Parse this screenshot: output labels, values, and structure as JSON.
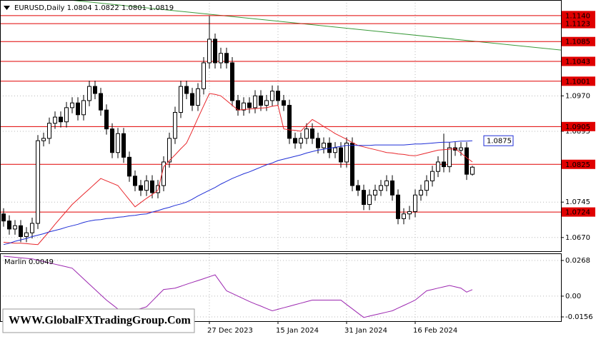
{
  "chart_data": {
    "type": "candlestick",
    "title": "EURUSD,Daily  1.0804 1.0822 1.0801 1.0819",
    "categories": [
      null,
      null,
      null,
      null,
      null,
      null,
      null,
      null,
      null,
      null,
      null,
      null,
      null,
      null,
      null,
      null,
      null,
      null,
      null,
      null,
      null,
      null,
      null,
      null,
      null,
      null,
      null,
      null,
      null,
      null,
      null,
      null,
      null,
      null,
      null,
      null,
      "27 Dec 2023",
      null,
      null,
      null,
      null,
      null,
      null,
      null,
      null,
      null,
      null,
      null,
      "15 Jan 2024",
      null,
      null,
      null,
      null,
      null,
      null,
      null,
      null,
      null,
      null,
      null,
      "31 Jan 2024",
      null,
      null,
      null,
      null,
      null,
      null,
      null,
      null,
      null,
      null,
      null,
      "16 Feb 2024",
      null,
      null,
      null,
      null,
      null,
      null,
      null,
      null,
      null,
      null
    ],
    "open": [
      1.072,
      1.0705,
      1.0688,
      1.0695,
      1.0672,
      1.068,
      1.07,
      1.0875,
      1.088,
      1.0912,
      1.0925,
      1.0915,
      1.0945,
      1.0955,
      1.093,
      1.096,
      1.099,
      1.0975,
      1.094,
      1.09,
      1.085,
      1.089,
      1.084,
      1.08,
      1.078,
      1.077,
      1.079,
      1.0765,
      1.078,
      1.083,
      1.088,
      1.0935,
      1.099,
      1.0975,
      1.095,
      1.0985,
      1.104,
      1.109,
      1.104,
      1.106,
      1.104,
      1.096,
      1.094,
      1.0955,
      1.0945,
      1.097,
      1.095,
      1.096,
      1.098,
      1.096,
      1.095,
      1.088,
      1.087,
      1.088,
      1.09,
      1.088,
      1.086,
      1.087,
      1.085,
      1.086,
      1.083,
      1.087,
      1.078,
      1.077,
      1.074,
      1.076,
      1.077,
      1.078,
      1.079,
      1.076,
      1.071,
      1.072,
      1.0725,
      1.076,
      1.077,
      1.079,
      1.081,
      1.083,
      1.082,
      1.086,
      1.0855,
      1.086,
      1.0804
    ],
    "high": [
      1.0732,
      1.0717,
      1.0707,
      1.0707,
      1.0692,
      1.0712,
      1.0887,
      1.0892,
      1.0924,
      1.0937,
      1.0937,
      1.0957,
      1.0967,
      1.0967,
      1.0972,
      1.1002,
      1.1002,
      1.0987,
      1.0952,
      1.0912,
      1.0902,
      1.0902,
      1.0852,
      1.0812,
      1.0792,
      1.0802,
      1.0802,
      1.0792,
      1.0842,
      1.0892,
      1.0947,
      1.1002,
      1.1002,
      1.0987,
      1.0997,
      1.1052,
      1.1139,
      1.1102,
      1.1072,
      1.1072,
      1.1052,
      1.0972,
      1.0967,
      1.0967,
      1.0982,
      1.0982,
      1.0972,
      1.0992,
      1.0992,
      1.0972,
      1.0962,
      1.0892,
      1.0892,
      1.0912,
      1.0912,
      1.0892,
      1.0882,
      1.0882,
      1.0872,
      1.0872,
      1.0882,
      1.0882,
      1.0792,
      1.0782,
      1.0772,
      1.0782,
      1.0792,
      1.0802,
      1.0802,
      1.0772,
      1.0732,
      1.0737,
      1.0772,
      1.0782,
      1.0802,
      1.0822,
      1.0842,
      1.089,
      1.0872,
      1.0872,
      1.0872,
      1.0872,
      1.0822
    ],
    "low": [
      1.0693,
      1.0676,
      1.0676,
      1.066,
      1.066,
      1.0668,
      1.0688,
      1.0863,
      1.0868,
      1.09,
      1.0903,
      1.0903,
      1.0933,
      1.0918,
      1.0918,
      1.0948,
      1.0963,
      1.0928,
      1.0888,
      1.0838,
      1.0838,
      1.0828,
      1.0788,
      1.0768,
      1.0758,
      1.0758,
      1.0753,
      1.0753,
      1.0768,
      1.0818,
      1.0868,
      1.0923,
      1.0963,
      1.0938,
      1.0938,
      1.0973,
      1.1028,
      1.1028,
      1.1028,
      1.1028,
      1.0948,
      1.0928,
      1.0928,
      1.0933,
      1.0933,
      1.0938,
      1.0938,
      1.0948,
      1.0948,
      1.0938,
      1.0868,
      1.0858,
      1.0858,
      1.0868,
      1.0868,
      1.0848,
      1.0848,
      1.0838,
      1.0838,
      1.0818,
      1.0818,
      1.0768,
      1.0758,
      1.0728,
      1.0728,
      1.0748,
      1.0758,
      1.0768,
      1.0748,
      1.0698,
      1.0698,
      1.0708,
      1.0713,
      1.0748,
      1.0758,
      1.0778,
      1.0798,
      1.0808,
      1.0808,
      1.0843,
      1.0843,
      1.0792,
      1.0801
    ],
    "close": [
      1.0705,
      1.0688,
      1.0695,
      1.0672,
      1.068,
      1.07,
      1.0875,
      1.088,
      1.0912,
      1.0925,
      1.0915,
      1.0945,
      1.0955,
      1.093,
      1.096,
      1.099,
      1.0975,
      1.094,
      1.09,
      1.085,
      1.089,
      1.084,
      1.08,
      1.078,
      1.077,
      1.079,
      1.0765,
      1.078,
      1.083,
      1.088,
      1.0935,
      1.099,
      1.0975,
      1.095,
      1.0985,
      1.104,
      1.109,
      1.104,
      1.106,
      1.104,
      1.096,
      1.094,
      1.0955,
      1.0945,
      1.097,
      1.095,
      1.096,
      1.098,
      1.096,
      1.095,
      1.088,
      1.087,
      1.088,
      1.09,
      1.088,
      1.086,
      1.087,
      1.085,
      1.086,
      1.083,
      1.087,
      1.078,
      1.077,
      1.074,
      1.076,
      1.077,
      1.078,
      1.079,
      1.076,
      1.071,
      1.072,
      1.0725,
      1.076,
      1.077,
      1.079,
      1.081,
      1.083,
      1.082,
      1.086,
      1.0855,
      1.086,
      1.0804,
      1.0819
    ],
    "up_color": "#ffffff",
    "down_color": "#000000",
    "overlays": [
      {
        "color": "#e8262b",
        "values": [
          1.066,
          1.0659,
          1.0658,
          1.0658,
          1.0657,
          1.0656,
          1.0655,
          1.0669,
          1.0683,
          1.0698,
          1.0712,
          1.0726,
          1.074,
          1.0751,
          1.0762,
          1.0773,
          1.0784,
          1.0795,
          1.079,
          1.0785,
          1.078,
          1.0765,
          1.075,
          1.0735,
          1.0744,
          1.0753,
          1.0761,
          1.077,
          1.082,
          1.0833,
          1.0845,
          1.0858,
          1.087,
          1.0896,
          1.0923,
          1.0949,
          1.0975,
          1.0973,
          1.097,
          1.096,
          1.095,
          1.094,
          1.0941,
          1.0942,
          1.0943,
          1.0944,
          1.0945,
          1.0948,
          1.095,
          1.09,
          1.0898,
          1.0897,
          1.0895,
          1.0908,
          1.092,
          1.0913,
          1.0905,
          1.0898,
          1.089,
          1.0884,
          1.0878,
          1.0871,
          1.0865,
          1.0862,
          1.0859,
          1.0856,
          1.0853,
          1.085,
          1.0849,
          1.0847,
          1.0846,
          1.0844,
          1.0843,
          1.0846,
          1.0849,
          1.0852,
          1.0855,
          1.0856,
          1.0857,
          1.0858,
          1.0849,
          1.0839,
          1.083
        ]
      },
      {
        "color": "#1f2ed6",
        "values": [
          1.0655,
          1.0658,
          1.0662,
          1.0665,
          1.0668,
          1.0672,
          1.0675,
          1.0678,
          1.0682,
          1.0685,
          1.0688,
          1.0692,
          1.0695,
          1.0698,
          1.0702,
          1.0705,
          1.0707,
          1.0708,
          1.071,
          1.0711,
          1.0713,
          1.0714,
          1.0716,
          1.0717,
          1.0719,
          1.072,
          1.0724,
          1.0727,
          1.0731,
          1.0734,
          1.0738,
          1.0741,
          1.0745,
          1.0751,
          1.0758,
          1.0764,
          1.077,
          1.0776,
          1.0783,
          1.0789,
          1.0795,
          1.08,
          1.0805,
          1.0809,
          1.0814,
          1.0819,
          1.0824,
          1.0828,
          1.0833,
          1.0836,
          1.0839,
          1.0842,
          1.0845,
          1.0849,
          1.0852,
          1.0855,
          1.0857,
          1.0859,
          1.0861,
          1.0863,
          1.0865,
          1.0865,
          1.0865,
          1.0865,
          1.0865,
          1.0866,
          1.0866,
          1.0866,
          1.0866,
          1.0866,
          1.0866,
          1.0867,
          1.0868,
          1.0868,
          1.0869,
          1.087,
          1.0871,
          1.0872,
          1.0872,
          1.0873,
          1.0874,
          1.0874,
          1.0875
        ]
      }
    ],
    "trend_line": {
      "color": "#3a9a3a",
      "values": [
        1.1188,
        1.1067
      ]
    },
    "level_color": "#e00000",
    "levels": [
      {
        "value": 1.114,
        "label": "1.1140"
      },
      {
        "value": 1.1123,
        "label": "1.1123"
      },
      {
        "value": 1.1085,
        "label": "1.1085"
      },
      {
        "value": 1.1043,
        "label": "1.1043"
      },
      {
        "value": 1.1001,
        "label": "1.1001"
      },
      {
        "value": 1.0905,
        "label": "1.0905"
      },
      {
        "value": 1.0825,
        "label": "1.0825"
      },
      {
        "value": 1.0724,
        "label": "1.0724"
      }
    ],
    "ylim": [
      1.0641,
      1.1173
    ],
    "yticks": [
      {
        "value": 1.097,
        "label": "1.0970"
      },
      1.0895,
      1.0745,
      {
        "value": 1.067,
        "label": "1.0670"
      }
    ],
    "grid": true,
    "indicator": {
      "label": "Marlin 0.0049",
      "color": "#9c27b0",
      "values": [
        0.03,
        0.0296,
        0.0292,
        0.0288,
        0.0284,
        0.028,
        0.027,
        0.026,
        0.025,
        0.024,
        0.023,
        0.022,
        0.021,
        0.017,
        0.013,
        0.009,
        0.005,
        0.001,
        -0.003,
        -0.0063,
        -0.0097,
        -0.013,
        -0.0118,
        -0.0105,
        -0.0093,
        -0.008,
        -0.0037,
        0.0007,
        0.005,
        0.0055,
        0.006,
        0.0074,
        0.0089,
        0.0103,
        0.0117,
        0.0131,
        0.0146,
        0.016,
        0.01,
        0.004,
        0.002,
        0,
        -0.002,
        -0.004,
        -0.0058,
        -0.0075,
        -0.0093,
        -0.011,
        -0.0099,
        -0.0087,
        -0.0076,
        -0.0064,
        -0.0053,
        -0.0041,
        -0.003,
        -0.003,
        -0.003,
        -0.003,
        -0.003,
        -0.003,
        -0.0063,
        -0.0095,
        -0.0128,
        -0.016,
        -0.015,
        -0.014,
        -0.013,
        -0.012,
        -0.011,
        -0.009,
        -0.007,
        -0.005,
        -0.003,
        0.0005,
        0.004,
        0.005,
        0.006,
        0.007,
        0.008,
        0.007,
        0.006,
        0.003,
        0.0049
      ],
      "ylim": [
        -0.0188,
        0.0316
      ],
      "yticks": [
        0.0268,
        {
          "value": 0,
          "label": "0.00"
        },
        -0.0156
      ]
    }
  },
  "watermark": "WWW.GlobalFXTradingGroup.Com"
}
